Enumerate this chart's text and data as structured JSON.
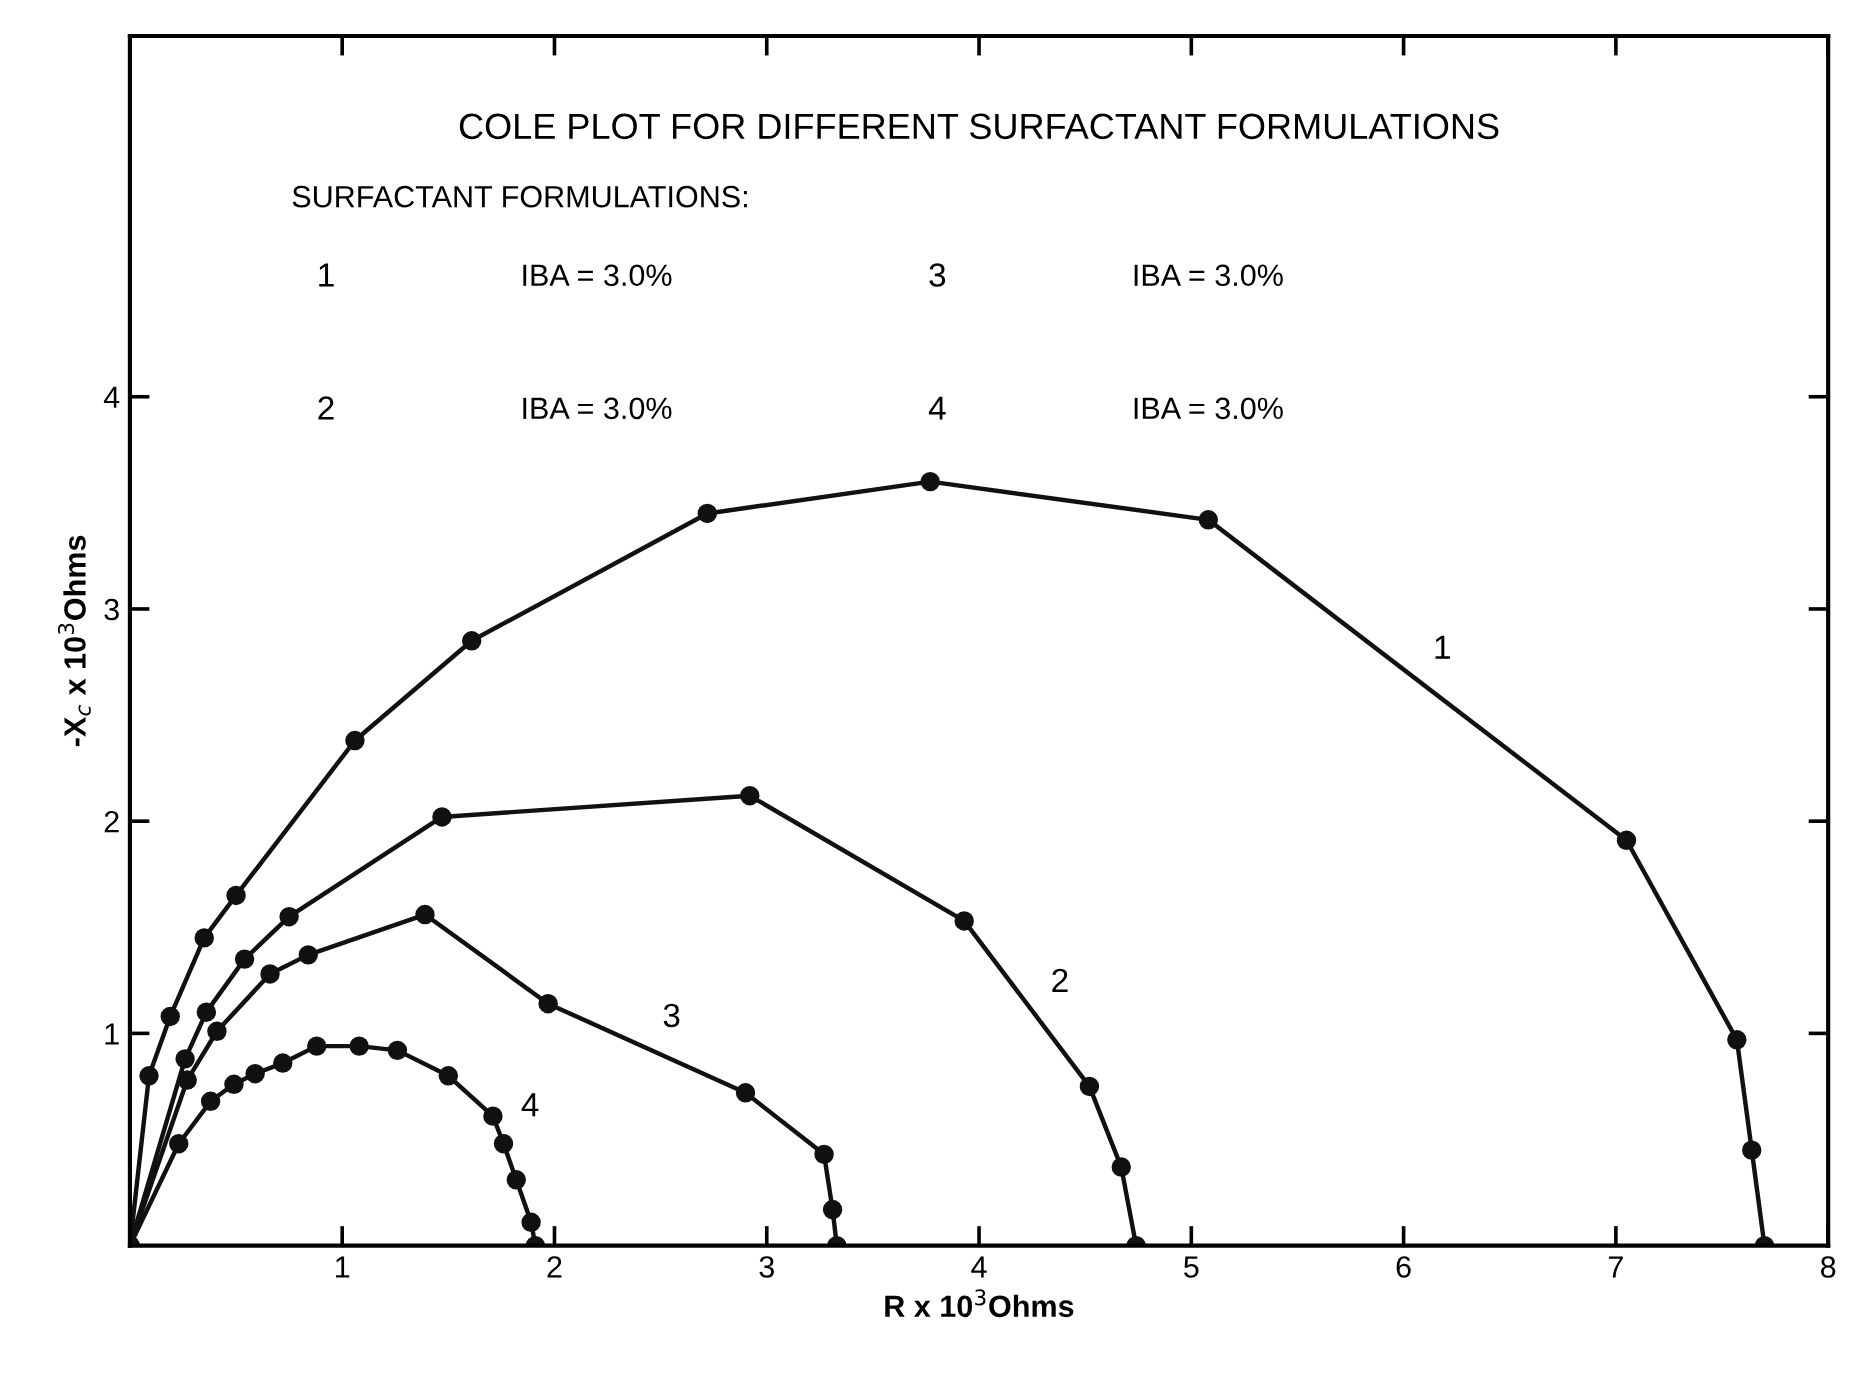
{
  "chart_data": {
    "type": "line",
    "title": "COLE PLOT FOR DIFFERENT SURFACTANT FORMULATIONS",
    "xlabel": "R x 10$^{3}$Ohms",
    "ylabel": "-X$_{c}$ x 10$^{3}$Ohms",
    "xlim": [
      0,
      8
    ],
    "ylim": [
      0,
      5.7
    ],
    "xticks": [
      1,
      2,
      3,
      4,
      5,
      6,
      7,
      8
    ],
    "yticks": [
      1,
      2,
      3,
      4
    ],
    "grid": false,
    "legend": false,
    "marker": "circle",
    "line_style": "solid",
    "series": [
      {
        "name": "1",
        "color": "#111111",
        "x": [
          0,
          0.09,
          0.19,
          0.35,
          0.5,
          1.06,
          1.61,
          2.72,
          3.77,
          5.08,
          7.05,
          7.57,
          7.64,
          7.7
        ],
        "values": [
          0,
          0.8,
          1.08,
          1.45,
          1.65,
          2.38,
          2.85,
          3.45,
          3.6,
          3.42,
          1.91,
          0.97,
          0.45,
          0
        ]
      },
      {
        "name": "2",
        "color": "#111111",
        "x": [
          0,
          0.26,
          0.36,
          0.54,
          0.75,
          1.47,
          2.92,
          3.93,
          4.52,
          4.67,
          4.74
        ],
        "values": [
          0,
          0.88,
          1.1,
          1.35,
          1.55,
          2.02,
          2.12,
          1.53,
          0.75,
          0.37,
          0
        ]
      },
      {
        "name": "3",
        "color": "#111111",
        "x": [
          0,
          0.27,
          0.41,
          0.66,
          0.84,
          1.39,
          1.97,
          2.9,
          3.27,
          3.31,
          3.33
        ],
        "values": [
          0,
          0.78,
          1.01,
          1.28,
          1.37,
          1.56,
          1.14,
          0.72,
          0.43,
          0.17,
          0
        ]
      },
      {
        "name": "4",
        "color": "#111111",
        "x": [
          0,
          0.23,
          0.38,
          0.49,
          0.59,
          0.72,
          0.88,
          1.08,
          1.26,
          1.5,
          1.71,
          1.76,
          1.82,
          1.89,
          1.91
        ],
        "values": [
          0,
          0.48,
          0.68,
          0.76,
          0.81,
          0.86,
          0.94,
          0.94,
          0.92,
          0.8,
          0.61,
          0.48,
          0.31,
          0.11,
          0
        ]
      }
    ],
    "annotations": [
      "SURFACTANT FORMULATIONS:",
      "1",
      "IBA = 3.0%",
      "2",
      "IBA = 3.0%",
      "3",
      "IBA = 3.0%",
      "4",
      "IBA = 3.0%"
    ]
  }
}
